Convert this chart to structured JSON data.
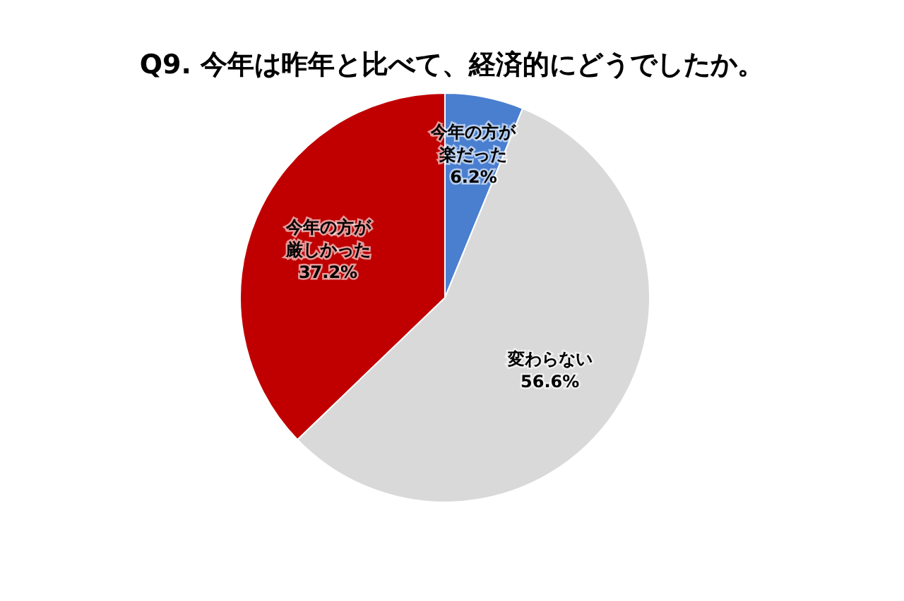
{
  "chart_data": {
    "type": "pie",
    "title": "Q9. 今年は昨年と比べて、経済的にどうでしたか。",
    "categories": [
      "今年の方が楽だった",
      "変わらない",
      "今年の方が厳しかった"
    ],
    "values": [
      6.2,
      56.6,
      37.2
    ],
    "value_labels": [
      "6.2%",
      "56.6%",
      "37.2%"
    ],
    "colors": [
      "#4a7fd0",
      "#d9d9d9",
      "#c00000"
    ],
    "legend": false
  }
}
